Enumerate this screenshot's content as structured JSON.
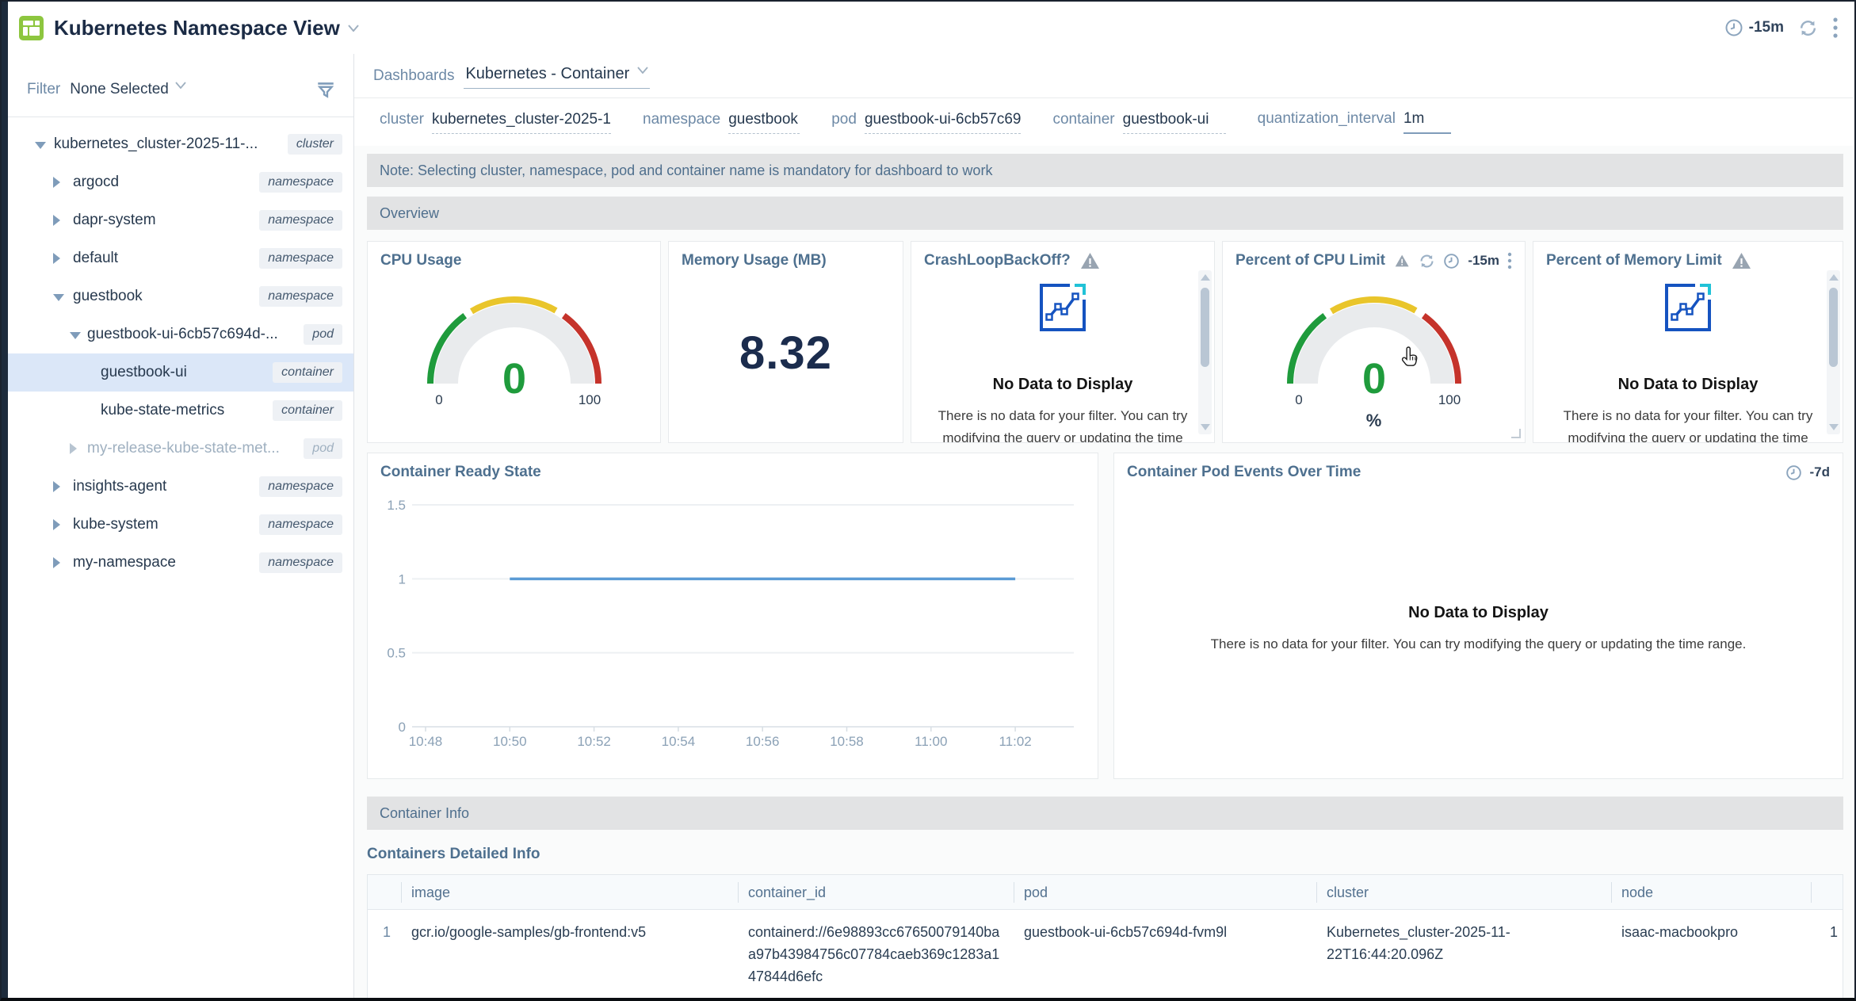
{
  "header": {
    "title": "Kubernetes Namespace View",
    "time_range": "-15m"
  },
  "sidebar": {
    "filter_label": "Filter",
    "filter_value": "None Selected",
    "tree": [
      {
        "label": "kubernetes_cluster-2025-11-...",
        "badge": "cluster",
        "level": 0,
        "state": "expanded"
      },
      {
        "label": "argocd",
        "badge": "namespace",
        "level": 1,
        "state": "collapsed"
      },
      {
        "label": "dapr-system",
        "badge": "namespace",
        "level": 1,
        "state": "collapsed"
      },
      {
        "label": "default",
        "badge": "namespace",
        "level": 1,
        "state": "collapsed"
      },
      {
        "label": "guestbook",
        "badge": "namespace",
        "level": 1,
        "state": "expanded"
      },
      {
        "label": "guestbook-ui-6cb57c694d-...",
        "badge": "pod",
        "level": 2,
        "state": "expanded"
      },
      {
        "label": "guestbook-ui",
        "badge": "container",
        "level": 3,
        "state": "leaf",
        "selected": true
      },
      {
        "label": "kube-state-metrics",
        "badge": "container",
        "level": 3,
        "state": "leaf"
      },
      {
        "label": "my-release-kube-state-met...",
        "badge": "pod",
        "level": 2,
        "state": "collapsed",
        "muted": true
      },
      {
        "label": "insights-agent",
        "badge": "namespace",
        "level": 1,
        "state": "collapsed"
      },
      {
        "label": "kube-system",
        "badge": "namespace",
        "level": 1,
        "state": "collapsed"
      },
      {
        "label": "my-namespace",
        "badge": "namespace",
        "level": 1,
        "state": "collapsed"
      }
    ]
  },
  "toolbar": {
    "dashboards_label": "Dashboards",
    "dashboard_name": "Kubernetes - Container"
  },
  "filters": [
    {
      "label": "cluster",
      "value": "kubernetes_cluster-2025-1",
      "underline": "dashed"
    },
    {
      "label": "namespace",
      "value": "guestbook",
      "underline": "dashed"
    },
    {
      "label": "pod",
      "value": "guestbook-ui-6cb57c69",
      "underline": "dashed"
    },
    {
      "label": "container",
      "value": "guestbook-ui",
      "underline": "dashed"
    },
    {
      "label": "quantization_interval",
      "value": "1m",
      "underline": "solid"
    }
  ],
  "note": "Note: Selecting cluster, namespace, pod and container name is mandatory for dashboard to work",
  "sections": {
    "overview": "Overview",
    "container_info": "Container Info"
  },
  "panels": {
    "cpu_usage": {
      "title": "CPU Usage",
      "value": "0",
      "min": "0",
      "max": "100"
    },
    "memory_usage": {
      "title": "Memory Usage (MB)",
      "value": "8.32"
    },
    "crashloop": {
      "title": "CrashLoopBackOff?",
      "no_data_title": "No Data to Display",
      "no_data_text": "There is no data for your filter. You can try modifying the query or updating the time"
    },
    "cpu_limit": {
      "title": "Percent of CPU Limit",
      "value": "0",
      "min": "0",
      "max": "100",
      "unit": "%",
      "time_range": "-15m"
    },
    "memory_limit": {
      "title": "Percent of Memory Limit",
      "no_data_title": "No Data to Display",
      "no_data_text": "There is no data for your filter. You can try modifying the query or updating the time"
    },
    "ready_state": {
      "title": "Container Ready State"
    },
    "pod_events": {
      "title": "Container Pod Events Over Time",
      "time_range": "-7d",
      "no_data_title": "No Data to Display",
      "no_data_text": "There is no data for your filter. You can try modifying the query or updating the time range."
    }
  },
  "chart_data": {
    "type": "line",
    "title": "Container Ready State",
    "x_ticks": [
      "10:48",
      "10:50",
      "10:52",
      "10:54",
      "10:56",
      "10:58",
      "11:00",
      "11:02"
    ],
    "y_ticks": [
      0,
      0.5,
      1,
      1.5
    ],
    "ylim": [
      0,
      1.5
    ],
    "grid": true,
    "legend": "none",
    "series": [
      {
        "name": "container ready state",
        "segment": {
          "from": "10:50",
          "to": "11:02",
          "y": 1
        }
      }
    ]
  },
  "table": {
    "title": "Containers Detailed Info",
    "columns": [
      "image",
      "container_id",
      "pod",
      "cluster",
      "node",
      ""
    ],
    "rows": [
      {
        "index": "1",
        "image": "gcr.io/google-samples/gb-frontend:v5",
        "container_id": "containerd://6e98893cc67650079140baa97b43984756c07784caeb369c1283a147844d6efc",
        "pod": "guestbook-ui-6cb57c694d-fvm9l",
        "cluster": "Kubernetes_cluster-2025-11-22T16:44:20.096Z",
        "node": "isaac-macbookpro",
        "restarts": "1"
      }
    ]
  },
  "colors": {
    "brand_green": "#8dc63f",
    "gauge_green": "#1f9b3c",
    "gauge_yellow": "#e9c52b",
    "gauge_red": "#c5332b",
    "gauge_track": "#e9ebed",
    "line_blue": "#5b9bd5",
    "chart_icon_blue": "#1553c0",
    "chart_icon_cyan": "#21c2d7",
    "steel": "#53718f"
  },
  "icons": {
    "time_icon": "clock",
    "refresh_icon": "circular-arrows",
    "menu_icon": "vertical-dots",
    "warning_icon": "triangle-exclamation",
    "filter_icon": "funnel",
    "chart_icon": "line-chart-square",
    "chevron_icon": "chevron-down",
    "cursor_icon": "hand-pointer"
  }
}
